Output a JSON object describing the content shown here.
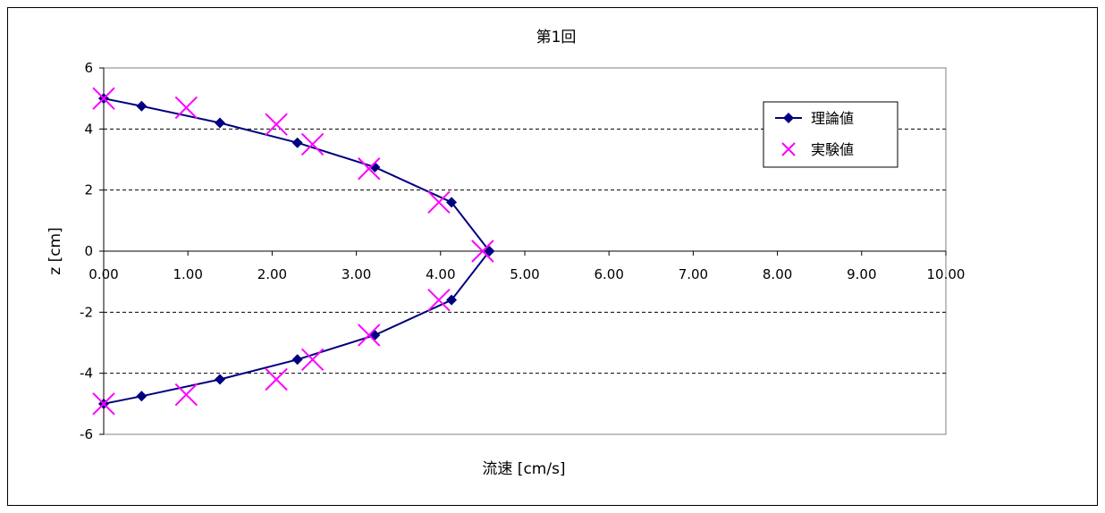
{
  "chart_data": {
    "type": "scatter",
    "title": "第1回",
    "xlabel": "流速 [cm/s]",
    "ylabel": "z [cm]",
    "xlim": [
      0,
      10
    ],
    "ylim": [
      -6,
      6
    ],
    "x_ticks": [
      "0.00",
      "1.00",
      "2.00",
      "3.00",
      "4.00",
      "5.00",
      "6.00",
      "7.00",
      "8.00",
      "9.00",
      "10.00"
    ],
    "y_ticks": [
      "6",
      "4",
      "2",
      "0",
      "-2",
      "-4",
      "-6"
    ],
    "y_tick_values": [
      6,
      4,
      2,
      0,
      -2,
      -4,
      -6
    ],
    "grid": "horizontal-dashed",
    "legend_position": "top-right",
    "series": [
      {
        "name": "理論値",
        "style": "line-diamond",
        "color": "#000080",
        "points": [
          {
            "x": 0.0,
            "y": 5.0
          },
          {
            "x": 0.45,
            "y": 4.75
          },
          {
            "x": 1.38,
            "y": 4.2
          },
          {
            "x": 2.3,
            "y": 3.55
          },
          {
            "x": 3.22,
            "y": 2.75
          },
          {
            "x": 4.13,
            "y": 1.6
          },
          {
            "x": 4.58,
            "y": 0.0
          },
          {
            "x": 4.13,
            "y": -1.6
          },
          {
            "x": 3.22,
            "y": -2.75
          },
          {
            "x": 2.3,
            "y": -3.55
          },
          {
            "x": 1.38,
            "y": -4.2
          },
          {
            "x": 0.45,
            "y": -4.75
          },
          {
            "x": 0.0,
            "y": -5.0
          }
        ]
      },
      {
        "name": "実験値",
        "style": "x-marker",
        "color": "#FF00FF",
        "points": [
          {
            "x": 0.0,
            "y": 5.0
          },
          {
            "x": 0.98,
            "y": 4.7
          },
          {
            "x": 2.05,
            "y": 4.15
          },
          {
            "x": 2.48,
            "y": 3.5
          },
          {
            "x": 3.15,
            "y": 2.7
          },
          {
            "x": 3.98,
            "y": 1.6
          },
          {
            "x": 4.5,
            "y": 0.0
          },
          {
            "x": 3.98,
            "y": -1.6
          },
          {
            "x": 3.15,
            "y": -2.75
          },
          {
            "x": 2.48,
            "y": -3.55
          },
          {
            "x": 2.05,
            "y": -4.2
          },
          {
            "x": 0.98,
            "y": -4.7
          },
          {
            "x": 0.0,
            "y": -5.0
          }
        ]
      }
    ]
  }
}
